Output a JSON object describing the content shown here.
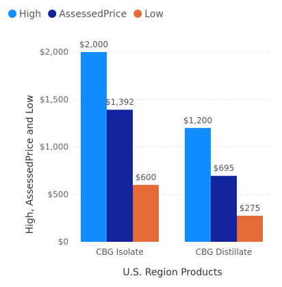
{
  "chart_data": {
    "type": "bar",
    "categories": [
      "CBG Isolate",
      "CBG Distillate"
    ],
    "series": [
      {
        "name": "High",
        "values": [
          2000,
          1200
        ],
        "color": "#118DFF",
        "labels": [
          "$2,000",
          "$1,200"
        ]
      },
      {
        "name": "AssessedPrice",
        "values": [
          1392,
          695
        ],
        "color": "#12239E",
        "labels": [
          "$1,392",
          "$695"
        ]
      },
      {
        "name": "Low",
        "values": [
          600,
          275
        ],
        "color": "#E66C37",
        "labels": [
          "$600",
          "$275"
        ]
      }
    ],
    "xlabel": "U.S. Region Products",
    "ylabel": "High, AssessedPrice and Low",
    "ylim": [
      0,
      2000
    ],
    "yticks": [
      0,
      500,
      1000,
      1500,
      2000
    ],
    "ytick_labels": [
      "$0",
      "$500",
      "$1,000",
      "$1,500",
      "$2,000"
    ],
    "grid": true,
    "legend_position": "top-left"
  }
}
